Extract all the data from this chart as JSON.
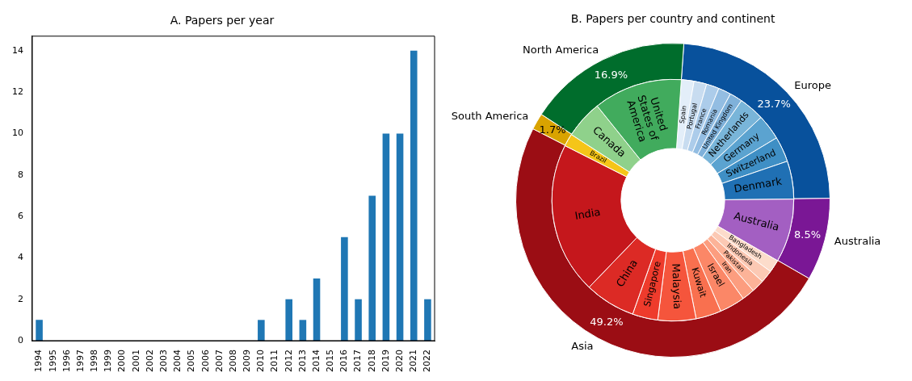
{
  "chart_data": [
    {
      "type": "bar",
      "title": "A. Papers per year",
      "categories": [
        "1994",
        "1995",
        "1996",
        "1997",
        "1998",
        "1999",
        "2000",
        "2001",
        "2002",
        "2003",
        "2004",
        "2005",
        "2006",
        "2007",
        "2008",
        "2009",
        "2010",
        "2011",
        "2012",
        "2013",
        "2014",
        "2015",
        "2016",
        "2017",
        "2018",
        "2019",
        "2020",
        "2021",
        "2022"
      ],
      "values": [
        1,
        0,
        0,
        0,
        0,
        0,
        0,
        0,
        0,
        0,
        0,
        0,
        0,
        0,
        0,
        0,
        1,
        0,
        2,
        1,
        3,
        0,
        5,
        2,
        7,
        10,
        10,
        14,
        2
      ],
      "color": "#1f77b4",
      "ylim": [
        0,
        14.7
      ],
      "yticks": [
        0,
        2,
        4,
        6,
        8,
        10,
        12,
        14
      ]
    },
    {
      "type": "donut",
      "title": "B. Papers per country and continent",
      "categories": [
        "Europe",
        "Australia",
        "Asia",
        "South America",
        "North America"
      ],
      "values": [
        23.7,
        8.5,
        49.2,
        1.7,
        16.9
      ],
      "colors": [
        "#08519c",
        "#7a1795",
        "#9b0d14",
        "#d9a300",
        "#006d2c"
      ],
      "value_labels": [
        "23.7%",
        "8.5%",
        "49.2%",
        "1.7%",
        "16.9%"
      ]
    },
    {
      "type": "donut",
      "categories": [
        "Spain",
        "Portugal",
        "France",
        "Romania",
        "United Kingdom",
        "Netherlands",
        "Germany",
        "Switzerland",
        "Denmark",
        "Australia",
        "Bangladesh",
        "Indonesia",
        "Pakistan",
        "Iran",
        "Israel",
        "Kuwait",
        "Malaysia",
        "Singapore",
        "China",
        "India",
        "Brazil",
        "Canada",
        "United States of America"
      ],
      "values": [
        1.7,
        1.7,
        1.7,
        1.7,
        1.7,
        3.4,
        3.4,
        3.4,
        5.1,
        8.5,
        1.7,
        1.7,
        1.7,
        1.7,
        3.4,
        3.4,
        5.1,
        3.4,
        6.8,
        20.3,
        1.7,
        5.1,
        11.9
      ],
      "colors": [
        "#e3eef9",
        "#c8dcf0",
        "#acccea",
        "#93bde2",
        "#7fb1da",
        "#79b5d9",
        "#5ba3d0",
        "#3f8fc5",
        "#2070b4",
        "#a35fc2",
        "#fcdccb",
        "#fcc9b4",
        "#fcb398",
        "#fc9d7f",
        "#fb8767",
        "#f9704f",
        "#f5553c",
        "#ee3b2c",
        "#dc2a25",
        "#c5171c",
        "#f5c518",
        "#8fd18b",
        "#41ab5d"
      ]
    }
  ]
}
